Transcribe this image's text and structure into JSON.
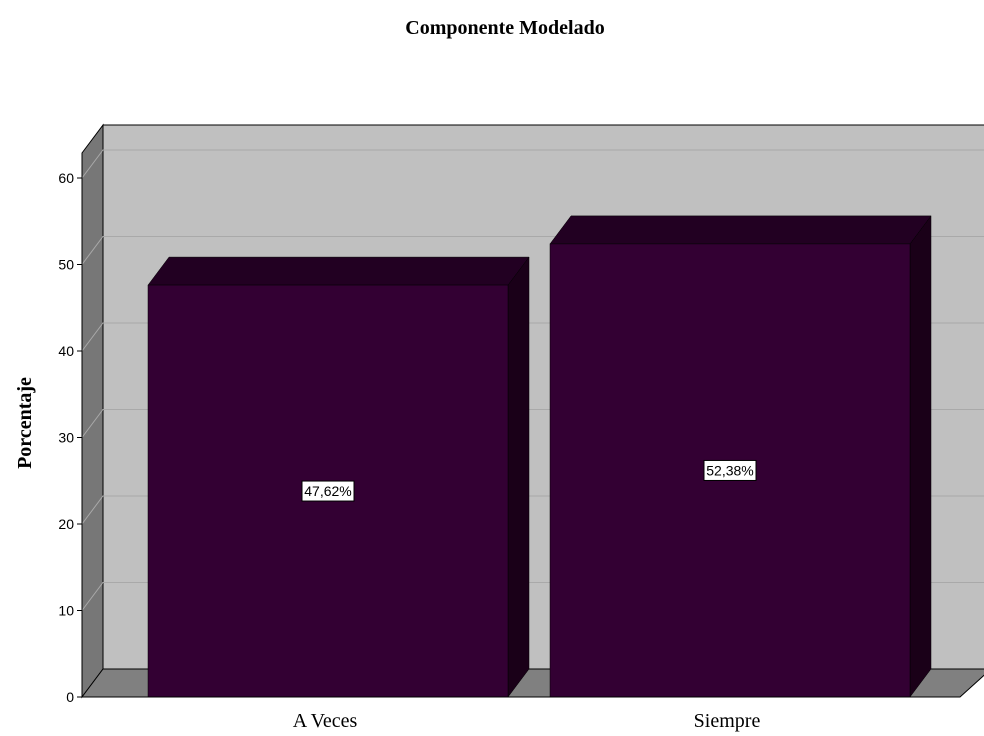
{
  "chart_data": {
    "type": "bar",
    "title": "Componente Modelado",
    "xlabel": "",
    "ylabel": "Porcentaje",
    "categories": [
      "A Veces",
      "Siempre"
    ],
    "values": [
      47.62,
      52.38
    ],
    "value_labels": [
      "47,62%",
      "52,38%"
    ],
    "ylim": [
      0,
      60
    ],
    "yticks": [
      "0",
      "10",
      "20",
      "30",
      "40",
      "50",
      "60"
    ],
    "grid": true,
    "legend": "none",
    "style": "3d",
    "colors": {
      "bar_front": "#330033",
      "bar_top": "#220022",
      "bar_side": "#1a0018",
      "back_wall": "#c0c0c0",
      "side_wall": "#777777",
      "floor": "#808080",
      "gridline": "#a9a9a9"
    }
  }
}
